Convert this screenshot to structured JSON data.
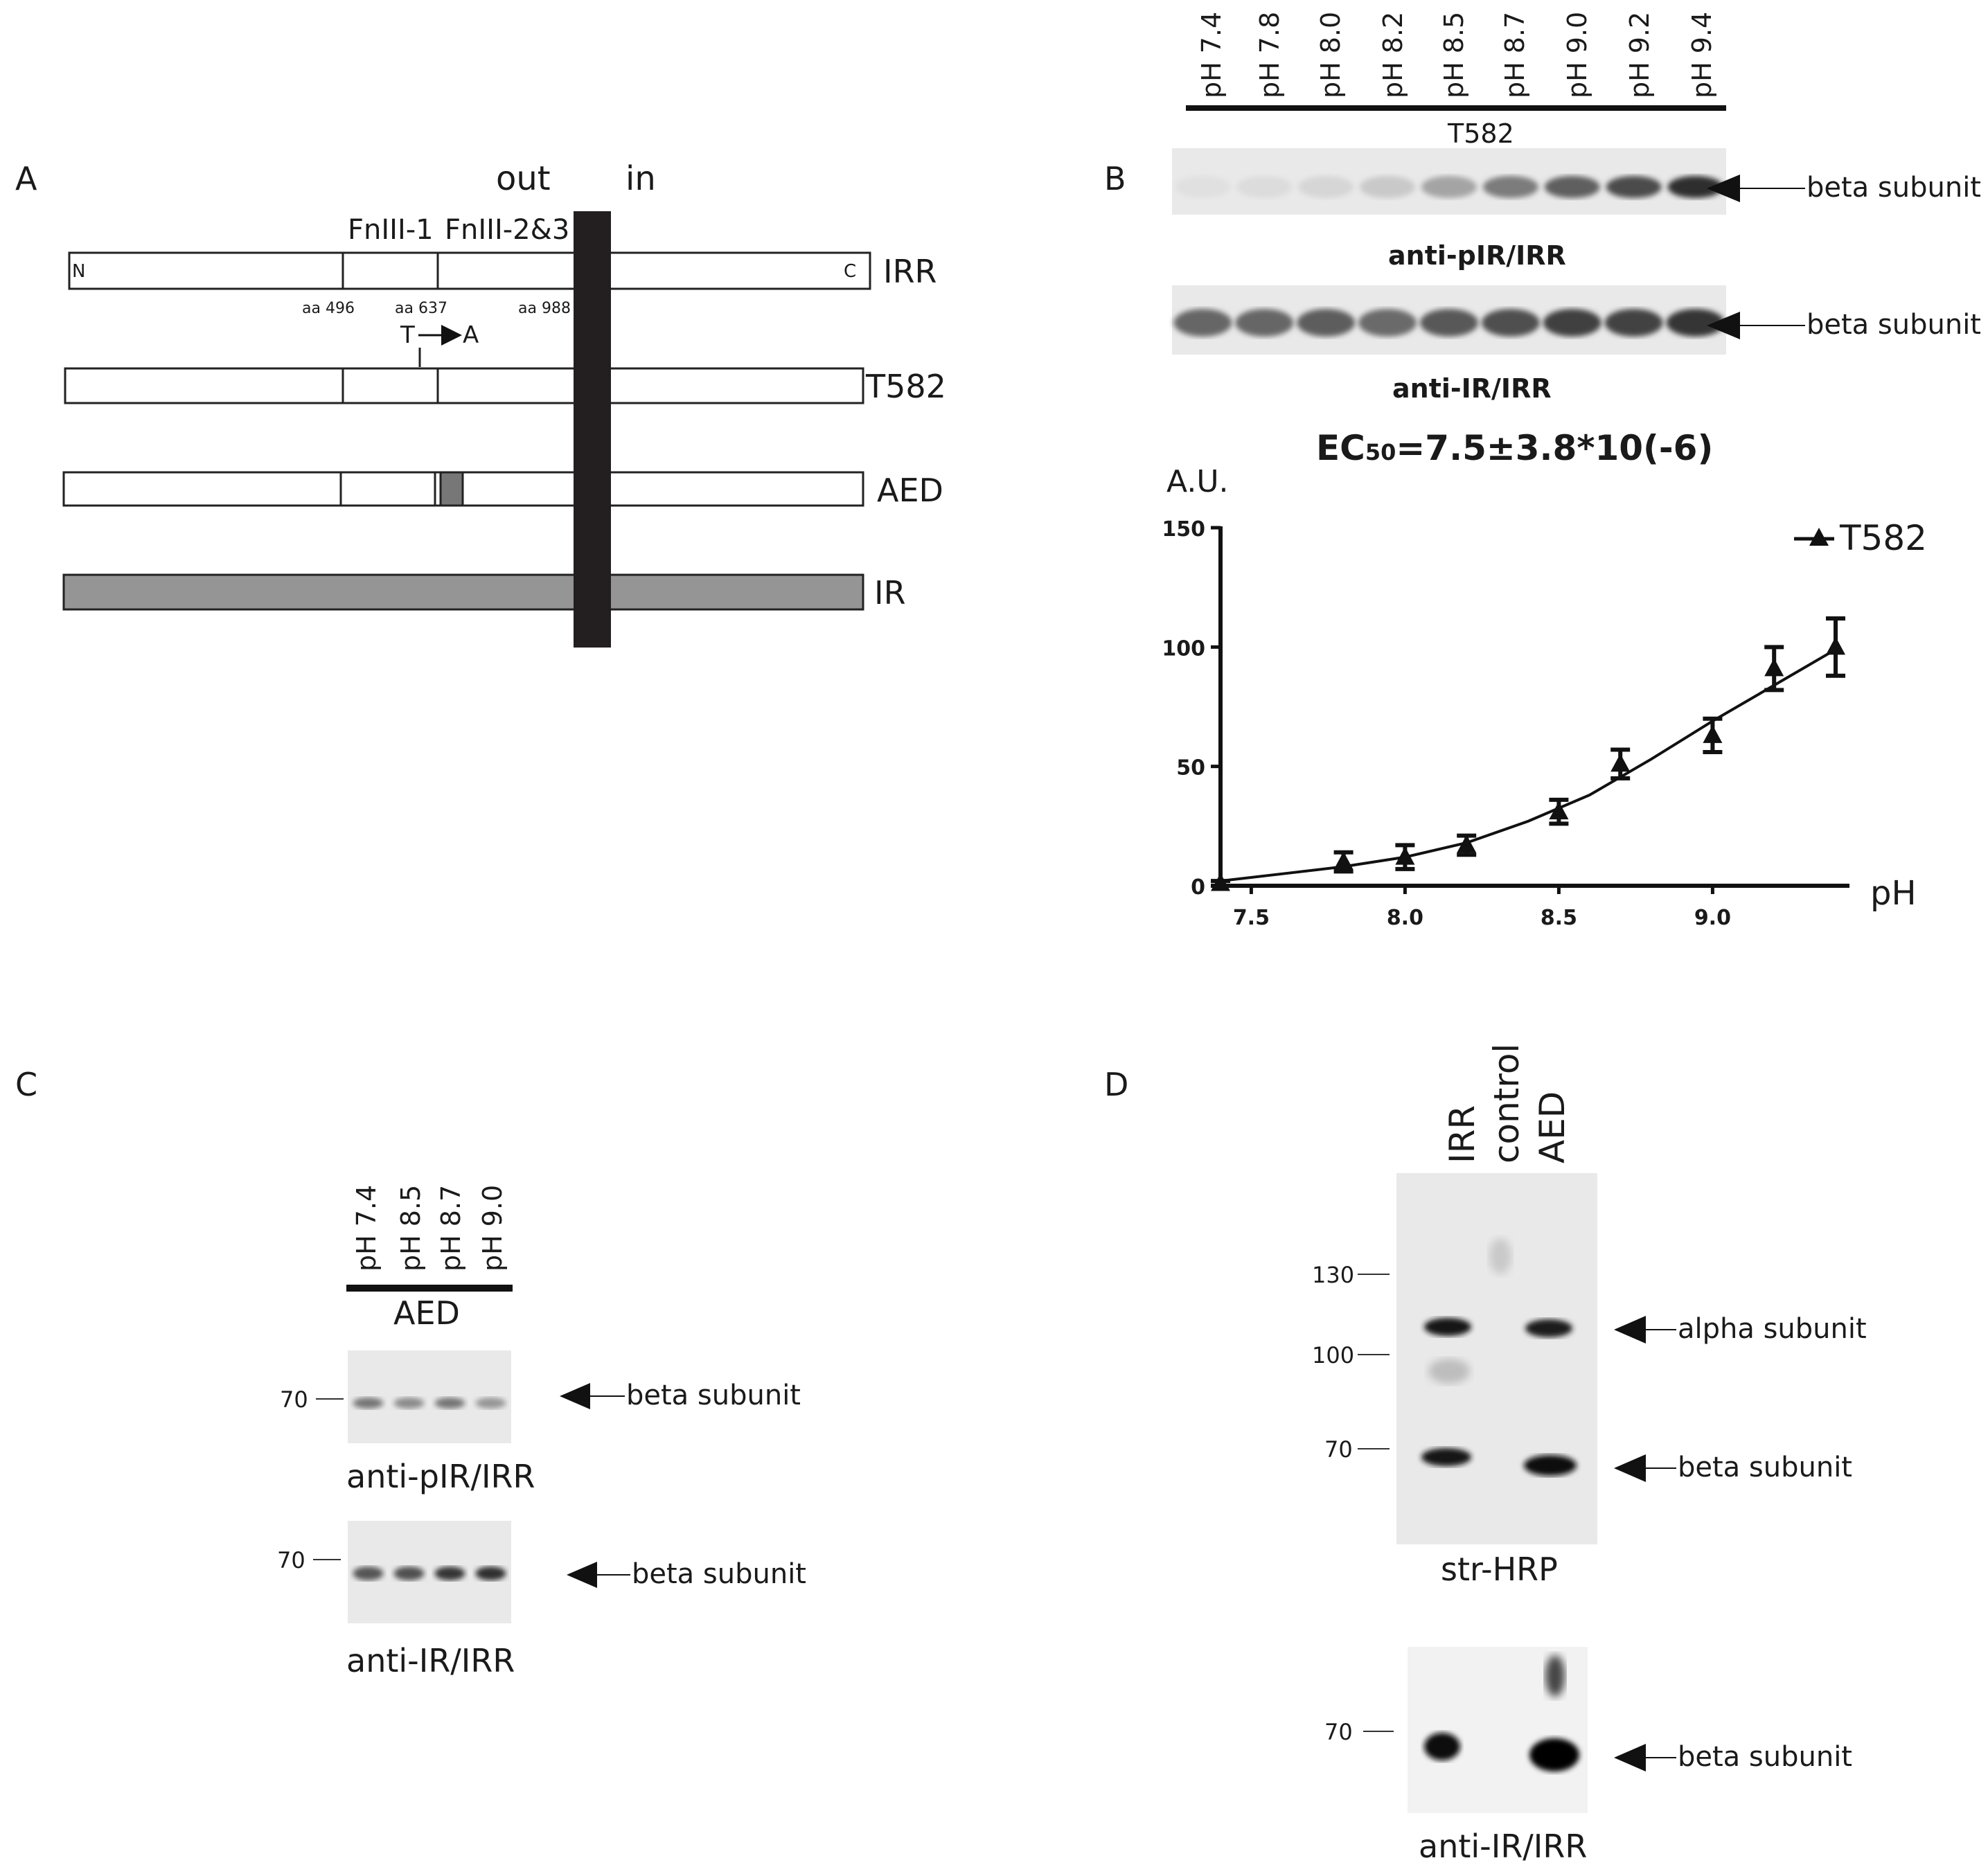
{
  "panels": {
    "A": {
      "letter": "A",
      "out": "out",
      "in": "in",
      "domain_fn1": "FnIII-1",
      "domain_fn23": "FnIII-2&3",
      "n_term": "N",
      "c_term": "C",
      "aa1": "aa 496",
      "aa2": "aa  637",
      "aa3": "aa 988",
      "mut_from": "T",
      "mut_to": "A",
      "rows": [
        {
          "label": "IRR"
        },
        {
          "label": "T582"
        },
        {
          "label": "AED"
        },
        {
          "label": "IR"
        }
      ]
    },
    "B": {
      "letter": "B",
      "lanes": [
        "pH 7.4",
        "pH 7.8",
        "pH 8.0",
        "pH 8.2",
        "pH 8.5",
        "pH 8.7",
        "pH 9.0",
        "pH 9.2",
        "pH 9.4"
      ],
      "group": "T582",
      "blot1_caption": "anti-pIR/IRR",
      "blot2_caption": "anti-IR/IRR",
      "band_label": "beta subunit",
      "band1_intensity": [
        0.05,
        0.07,
        0.1,
        0.16,
        0.33,
        0.52,
        0.65,
        0.74,
        0.88
      ],
      "band2_intensity": [
        0.62,
        0.62,
        0.66,
        0.6,
        0.68,
        0.72,
        0.8,
        0.78,
        0.84
      ],
      "ec50_prefix": "EC",
      "ec50_sub": "50",
      "ec50_value": "=7.5±3.8*10(-6)"
    },
    "C": {
      "letter": "C",
      "lanes": [
        "pH 7.4",
        "pH 8.5",
        "pH 8.7",
        "pH 9.0"
      ],
      "group": "AED",
      "marker": "70",
      "blot1_caption": "anti-pIR/IRR",
      "blot2_caption": "anti-IR/IRR",
      "band_label": "beta subunit",
      "band1_intensity": [
        0.55,
        0.45,
        0.55,
        0.4
      ],
      "band2_intensity": [
        0.7,
        0.72,
        0.85,
        0.88
      ]
    },
    "D": {
      "letter": "D",
      "lanes": [
        "IRR",
        "control",
        "AED"
      ],
      "markers": [
        "130",
        "100",
        "70"
      ],
      "marker_bottom": "70",
      "blot1_caption": "str-HRP",
      "blot2_caption": "anti-IR/IRR",
      "alpha_label": "alpha subunit",
      "beta_label": "beta subunit",
      "beta_label2": "beta subunit"
    }
  },
  "chart_data": {
    "type": "line",
    "title": "EC50=7.5±3.8*10(-6)",
    "xlabel": "pH",
    "ylabel": "A.U.",
    "xlim": [
      7.4,
      9.4
    ],
    "ylim": [
      0,
      150
    ],
    "xticks": [
      "7.5",
      "8.0",
      "8.5",
      "9.0"
    ],
    "yticks": [
      "0",
      "50",
      "100",
      "150"
    ],
    "legend_position": "top-right",
    "series": [
      {
        "name": "T582",
        "marker": "triangle",
        "x": [
          7.4,
          7.8,
          8.0,
          8.2,
          8.5,
          8.7,
          9.0,
          9.2,
          9.4
        ],
        "y": [
          1,
          10,
          12,
          17,
          31,
          51,
          63,
          91,
          100
        ],
        "yerr": [
          1,
          4,
          5,
          4,
          5,
          6,
          7,
          9,
          12
        ]
      }
    ],
    "fit_curve": {
      "x": [
        7.4,
        7.6,
        7.8,
        8.0,
        8.2,
        8.4,
        8.6,
        8.8,
        9.0,
        9.2,
        9.4
      ],
      "y": [
        2,
        5,
        8,
        12,
        18,
        27,
        38,
        53,
        69,
        84,
        99
      ]
    }
  }
}
